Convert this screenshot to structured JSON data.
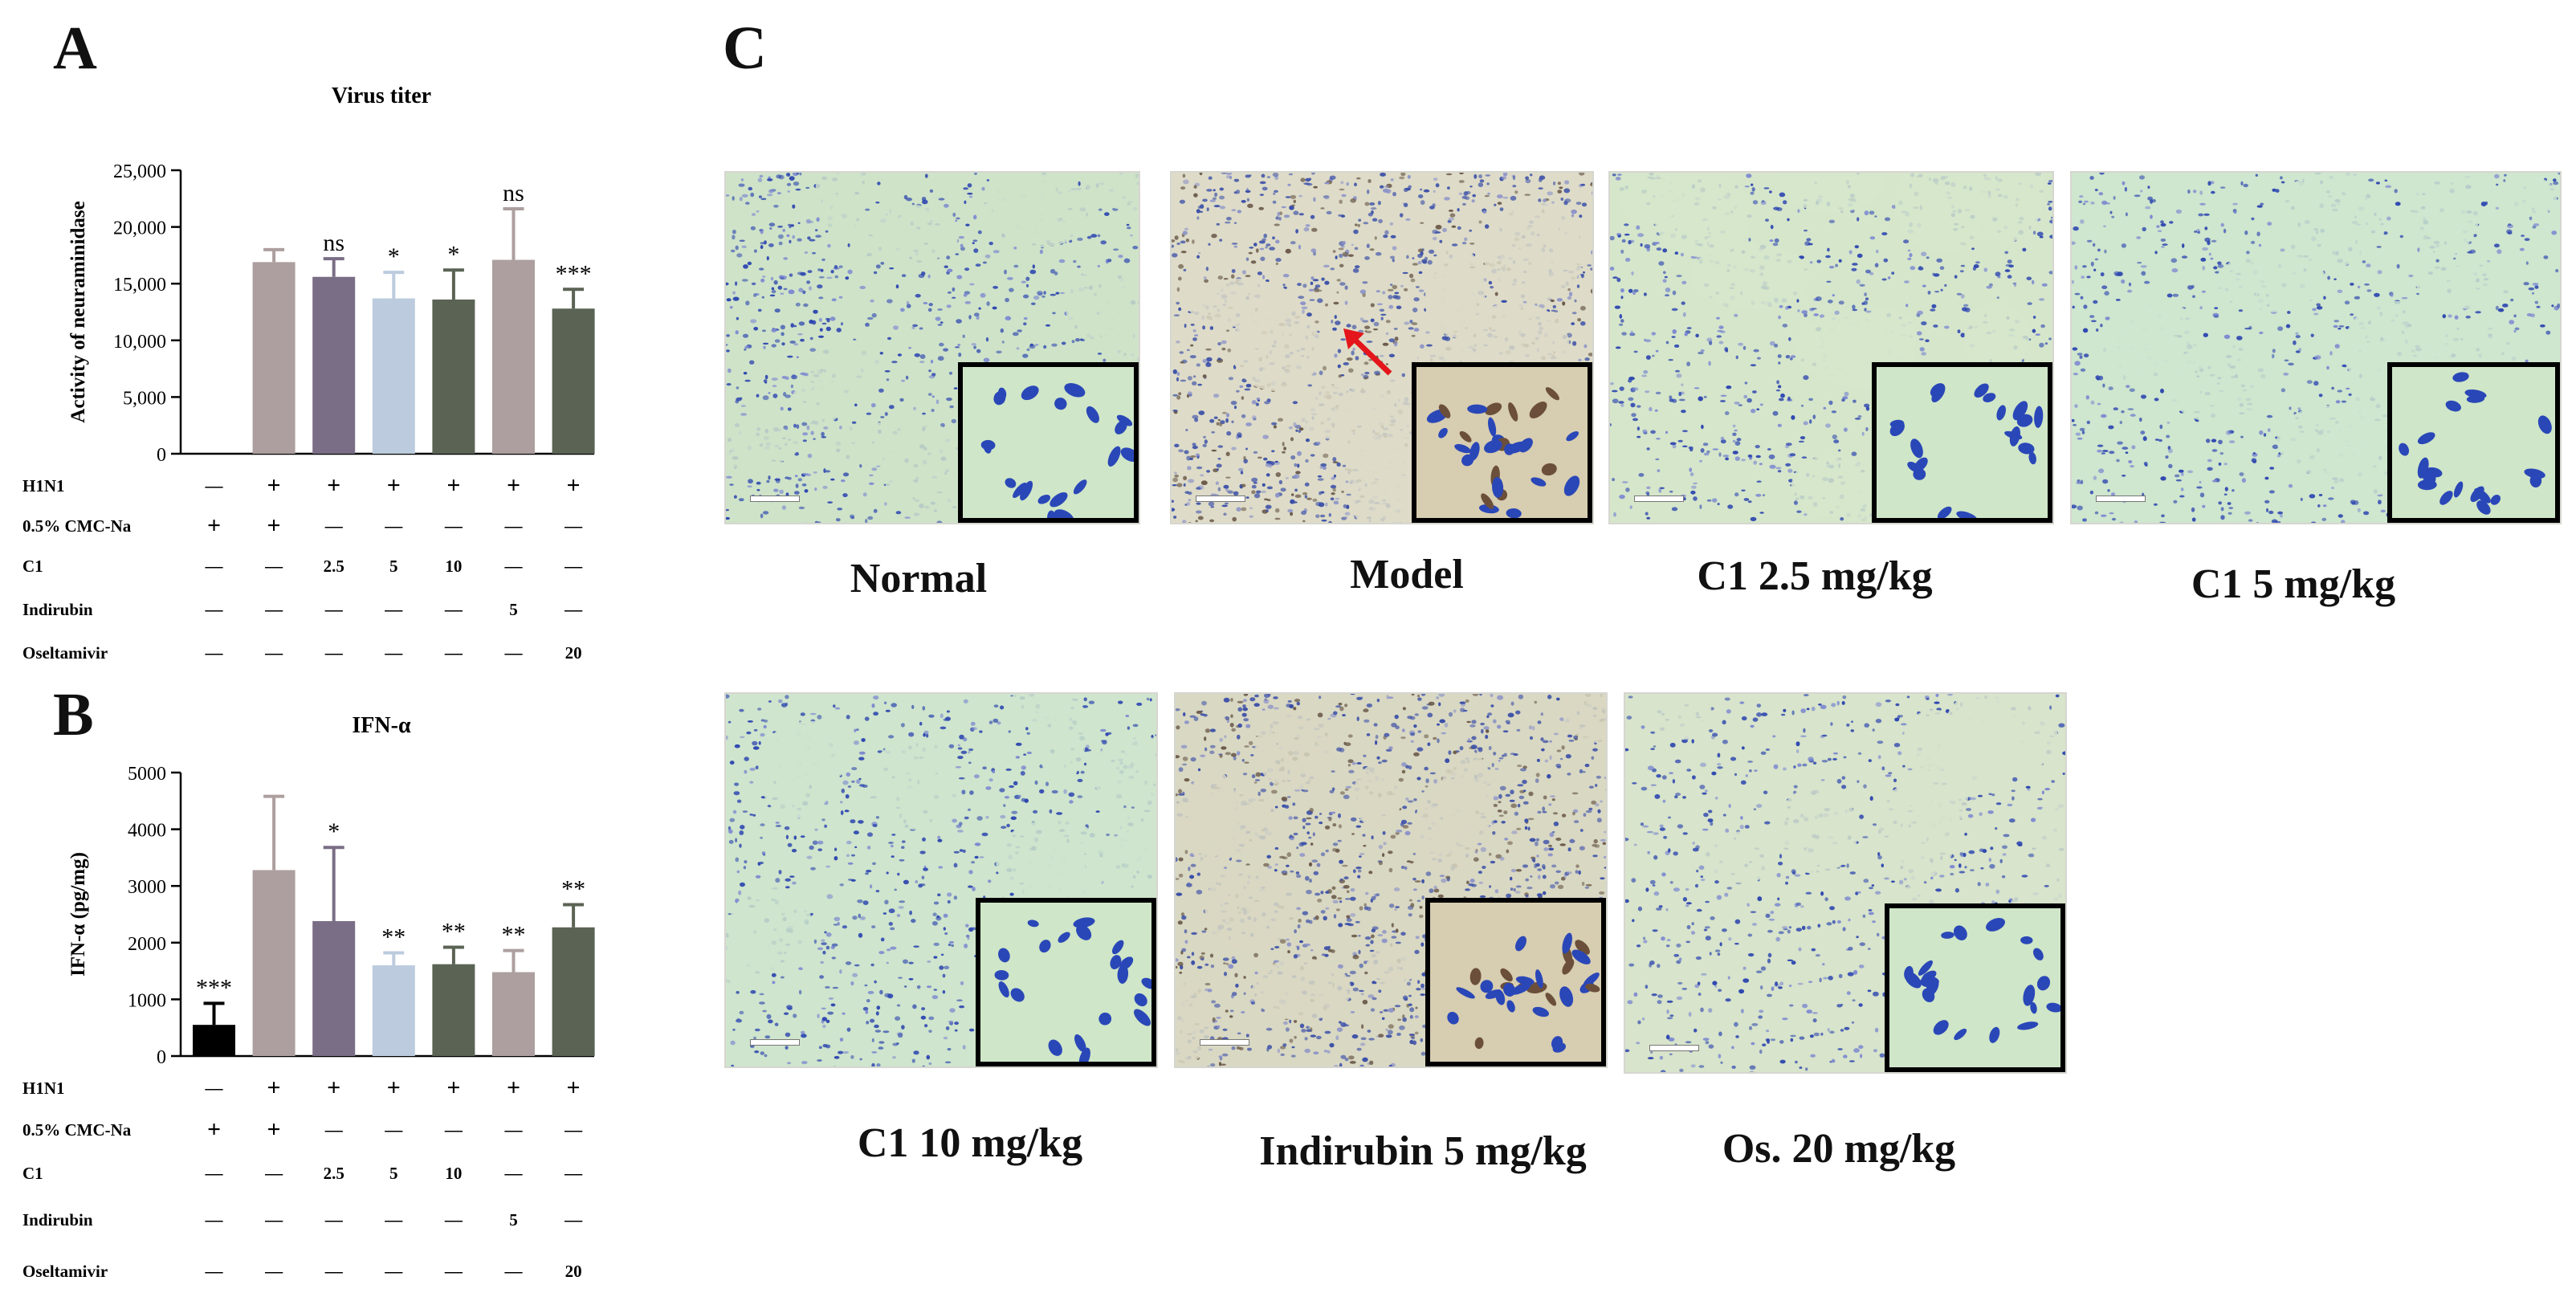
{
  "panel_letters": {
    "a": "A",
    "b": "B",
    "c": "C"
  },
  "chart_data": [
    {
      "id": "A",
      "type": "bar",
      "title": "Virus titer",
      "xlabel": "",
      "ylabel": "Activity of neuraminidase",
      "ylim": [
        0,
        25000
      ],
      "yticks": [
        "0",
        "5,000",
        "10,000",
        "15,000",
        "20,000",
        "25,000"
      ],
      "ytick_values": [
        0,
        5000,
        10000,
        15000,
        20000,
        25000
      ],
      "values": [
        0,
        16900,
        15600,
        13700,
        13600,
        17100,
        12800
      ],
      "errors": [
        0,
        1100,
        1600,
        2300,
        2600,
        4500,
        1700
      ],
      "annotations": [
        "",
        "",
        "ns",
        "*",
        "*",
        "ns",
        "***"
      ],
      "colors": [
        "#000000",
        "#ad9f9f",
        "#7a6e86",
        "#bccbde",
        "#5b6354",
        "#ad9f9f",
        "#5b6354"
      ],
      "group_table": [
        {
          "label": "H1N1",
          "cells": [
            "—",
            "+",
            "+",
            "+",
            "+",
            "+",
            "+"
          ]
        },
        {
          "label": "0.5% CMC-Na",
          "cells": [
            "+",
            "+",
            "—",
            "—",
            "—",
            "—",
            "—"
          ]
        },
        {
          "label": "C1",
          "cells": [
            "—",
            "—",
            "2.5",
            "5",
            "10",
            "—",
            "—"
          ]
        },
        {
          "label": "Indirubin",
          "cells": [
            "—",
            "—",
            "—",
            "—",
            "—",
            "5",
            "—"
          ]
        },
        {
          "label": "Oseltamivir",
          "cells": [
            "—",
            "—",
            "—",
            "—",
            "—",
            "—",
            "20"
          ]
        }
      ]
    },
    {
      "id": "B",
      "type": "bar",
      "title": "IFN-α",
      "xlabel": "",
      "ylabel": "IFN-α (pg/mg)",
      "ylim": [
        0,
        5000
      ],
      "yticks": [
        "0",
        "1000",
        "2000",
        "3000",
        "4000",
        "5000"
      ],
      "ytick_values": [
        0,
        1000,
        2000,
        3000,
        4000,
        5000
      ],
      "values": [
        550,
        3280,
        2380,
        1600,
        1620,
        1480,
        2270
      ],
      "errors": [
        380,
        1300,
        1300,
        220,
        300,
        380,
        400
      ],
      "annotations": [
        "***",
        "",
        "*",
        "**",
        "**",
        "**",
        "**"
      ],
      "colors": [
        "#000000",
        "#ad9f9f",
        "#7a6e86",
        "#bccbde",
        "#5b6354",
        "#ad9f9f",
        "#5b6354"
      ],
      "group_table": [
        {
          "label": "H1N1",
          "cells": [
            "—",
            "+",
            "+",
            "+",
            "+",
            "+",
            "+"
          ]
        },
        {
          "label": "0.5% CMC-Na",
          "cells": [
            "+",
            "+",
            "—",
            "—",
            "—",
            "—",
            "—"
          ]
        },
        {
          "label": "C1",
          "cells": [
            "—",
            "—",
            "2.5",
            "5",
            "10",
            "—",
            "—"
          ]
        },
        {
          "label": "Indirubin",
          "cells": [
            "—",
            "—",
            "—",
            "—",
            "—",
            "5",
            "—"
          ]
        },
        {
          "label": "Oseltamivir",
          "cells": [
            "—",
            "—",
            "—",
            "—",
            "—",
            "—",
            "20"
          ]
        }
      ]
    }
  ],
  "micrographs": [
    {
      "label": "Normal",
      "tone": "#cfe3c9",
      "stain": "blue",
      "arrow": false
    },
    {
      "label": "Model",
      "tone": "#dedcc8",
      "stain": "dense",
      "arrow": true
    },
    {
      "label": "C1 2.5 mg/kg",
      "tone": "#d6e6cb",
      "stain": "blue",
      "arrow": false
    },
    {
      "label": "C1 5 mg/kg",
      "tone": "#cfe6cf",
      "stain": "blue",
      "arrow": false
    },
    {
      "label": "C1 10 mg/kg",
      "tone": "#cfe5cd",
      "stain": "blue",
      "arrow": false
    },
    {
      "label": "Indirubin 5 mg/kg",
      "tone": "#d9d8c3",
      "stain": "dense",
      "arrow": false
    },
    {
      "label": "Os. 20 mg/kg",
      "tone": "#d8e4cb",
      "stain": "blue",
      "arrow": false
    }
  ]
}
